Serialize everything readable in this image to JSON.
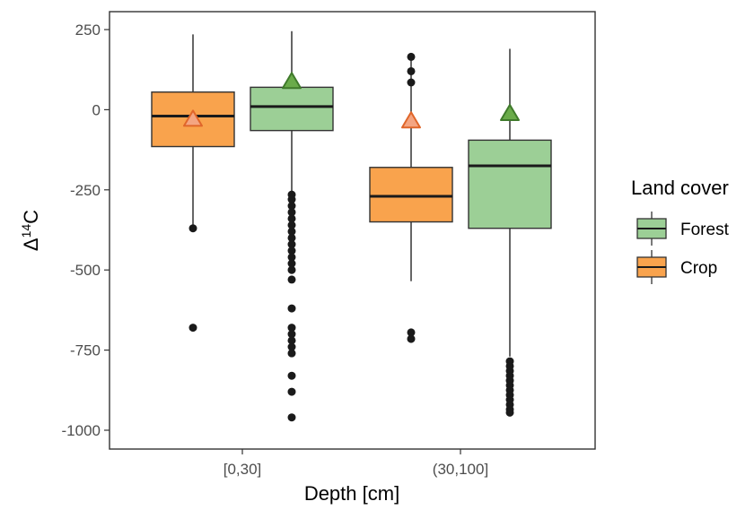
{
  "chart_data": {
    "type": "boxplot",
    "xlabel": "Depth [cm]",
    "ylabel_base": "Δ",
    "ylabel_sup": "14",
    "ylabel_suffix": "C",
    "ylim": [
      -1050,
      250
    ],
    "yticks": [
      250,
      0,
      -250,
      -500,
      -750,
      -1000
    ],
    "grid": false,
    "categories": [
      "[0,30]",
      "(30,100]"
    ],
    "legend": {
      "title": "Land cover",
      "placement": "right",
      "entries": [
        {
          "name": "Forest",
          "color": "#9ccf96"
        },
        {
          "name": "Crop",
          "color": "#f9a34d"
        }
      ]
    },
    "series": [
      {
        "name": "Crop",
        "fill": "#f9a34d",
        "mean_fill": "#f4a582",
        "mean_stroke": "#e0662a",
        "boxes": [
          {
            "category": "[0,30]",
            "whisker_low": -360,
            "q1": -115,
            "median": -20,
            "q3": 55,
            "whisker_high": 235,
            "mean": -28,
            "outliers": [
              -370,
              -680
            ]
          },
          {
            "category": "(30,100]",
            "whisker_low": -535,
            "q1": -350,
            "median": -270,
            "q3": -180,
            "whisker_high": 160,
            "mean": -33,
            "outliers": [
              165,
              120,
              85,
              -695,
              -715
            ]
          }
        ]
      },
      {
        "name": "Forest",
        "fill": "#9ccf96",
        "mean_fill": "#6aab4a",
        "mean_stroke": "#3f7a2b",
        "boxes": [
          {
            "category": "[0,30]",
            "whisker_low": -255,
            "q1": -65,
            "median": 10,
            "q3": 70,
            "whisker_high": 245,
            "mean": 90,
            "outliers": [
              -265,
              -280,
              -300,
              -320,
              -340,
              -360,
              -380,
              -400,
              -420,
              -440,
              -460,
              -480,
              -500,
              -530,
              -620,
              -680,
              -700,
              -720,
              -740,
              -760,
              -830,
              -880,
              -960
            ]
          },
          {
            "category": "(30,100]",
            "whisker_low": -770,
            "q1": -370,
            "median": -175,
            "q3": -95,
            "whisker_high": 190,
            "mean": -10,
            "outliers": [
              -785,
              -800,
              -815,
              -830,
              -845,
              -860,
              -875,
              -890,
              -905,
              -920,
              -935,
              -945
            ]
          }
        ]
      }
    ]
  }
}
